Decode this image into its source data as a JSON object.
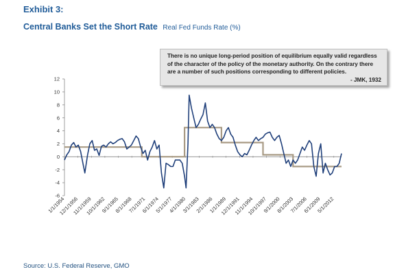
{
  "exhibit_label": "Exhibit 3:",
  "title": "Central Banks Set the Short Rate",
  "subtitle": "Real Fed Funds Rate (%)",
  "quote": {
    "text": "There is no unique long-period position of equilibrium equally valid regardless of the character of the policy of the monetary authority. On the contrary there are a number of such positions corresponding to different policies.",
    "attribution": "- JMK, 1932"
  },
  "source": "Source: U.S. Federal Reserve, GMO",
  "colors": {
    "title": "#1f5b98",
    "rate_line": "#1f3f7a",
    "regime_line": "#a89a84"
  },
  "chart_data": {
    "type": "line",
    "title": "Central Banks Set the Short Rate",
    "ylim": [
      -6,
      12
    ],
    "yticks": [
      -6,
      -4,
      -2,
      0,
      2,
      4,
      6,
      8,
      10,
      12
    ],
    "x_domain": [
      "1/1/1954",
      "1/1/2014"
    ],
    "x_tick_labels": [
      "1/1/1954",
      "12/1/1956",
      "11/1/1959",
      "10/1/1962",
      "9/1/1965",
      "8/1/1968",
      "7/1/1971",
      "6/1/1974",
      "5/1/1977",
      "4/1/1980",
      "3/1/1983",
      "2/1/1986",
      "1/1/1989",
      "12/1/1991",
      "11/1/1994",
      "10/1/1997",
      "9/1/2000",
      "8/1/2003",
      "7/1/2006",
      "6/1/2009",
      "5/1/2012"
    ],
    "grid": false,
    "legend": "none",
    "series": [
      {
        "kind": "rate",
        "points": [
          [
            "1/1954",
            -0.5
          ],
          [
            "7/1954",
            0.3
          ],
          [
            "1/1955",
            0.8
          ],
          [
            "7/1955",
            1.8
          ],
          [
            "1/1956",
            2.2
          ],
          [
            "7/1956",
            1.5
          ],
          [
            "1/1957",
            1.8
          ],
          [
            "7/1957",
            0.8
          ],
          [
            "1/1958",
            -1.0
          ],
          [
            "6/1958",
            -2.5
          ],
          [
            "1/1959",
            0.3
          ],
          [
            "7/1959",
            2.0
          ],
          [
            "1/1960",
            2.5
          ],
          [
            "7/1960",
            1.0
          ],
          [
            "1/1961",
            1.2
          ],
          [
            "7/1961",
            0.2
          ],
          [
            "1/1962",
            1.6
          ],
          [
            "7/1962",
            1.8
          ],
          [
            "1/1963",
            1.5
          ],
          [
            "7/1963",
            2.0
          ],
          [
            "1/1964",
            2.3
          ],
          [
            "7/1964",
            2.0
          ],
          [
            "1/1965",
            2.2
          ],
          [
            "7/1965",
            2.5
          ],
          [
            "1/1966",
            2.7
          ],
          [
            "7/1966",
            2.8
          ],
          [
            "1/1967",
            2.3
          ],
          [
            "7/1967",
            1.2
          ],
          [
            "1/1968",
            1.5
          ],
          [
            "7/1968",
            1.8
          ],
          [
            "1/1969",
            2.5
          ],
          [
            "7/1969",
            3.2
          ],
          [
            "1/1970",
            2.8
          ],
          [
            "7/1970",
            1.5
          ],
          [
            "1/1971",
            0.5
          ],
          [
            "7/1971",
            1.0
          ],
          [
            "1/1972",
            -0.5
          ],
          [
            "7/1972",
            0.8
          ],
          [
            "1/1973",
            1.5
          ],
          [
            "7/1973",
            2.5
          ],
          [
            "1/1974",
            1.2
          ],
          [
            "7/1974",
            1.8
          ],
          [
            "1/1975",
            -2.5
          ],
          [
            "7/1975",
            -4.8
          ],
          [
            "1/1976",
            -1.0
          ],
          [
            "7/1976",
            -1.2
          ],
          [
            "1/1977",
            -1.5
          ],
          [
            "7/1977",
            -1.5
          ],
          [
            "1/1978",
            -0.5
          ],
          [
            "7/1978",
            -0.5
          ],
          [
            "1/1979",
            -0.5
          ],
          [
            "7/1979",
            -1.0
          ],
          [
            "1/1980",
            -3.0
          ],
          [
            "5/1980",
            -4.8
          ],
          [
            "10/1980",
            2.0
          ],
          [
            "1/1981",
            9.5
          ],
          [
            "7/1981",
            7.5
          ],
          [
            "1/1982",
            6.0
          ],
          [
            "7/1982",
            4.5
          ],
          [
            "1/1983",
            5.0
          ],
          [
            "7/1983",
            5.8
          ],
          [
            "1/1984",
            6.5
          ],
          [
            "7/1984",
            8.3
          ],
          [
            "1/1985",
            5.5
          ],
          [
            "7/1985",
            4.5
          ],
          [
            "1/1986",
            5.0
          ],
          [
            "7/1986",
            4.5
          ],
          [
            "1/1987",
            3.5
          ],
          [
            "7/1987",
            2.8
          ],
          [
            "1/1988",
            2.5
          ],
          [
            "7/1988",
            3.0
          ],
          [
            "1/1989",
            4.0
          ],
          [
            "7/1989",
            4.5
          ],
          [
            "1/1990",
            3.5
          ],
          [
            "7/1990",
            3.0
          ],
          [
            "1/1991",
            1.8
          ],
          [
            "7/1991",
            0.8
          ],
          [
            "1/1992",
            0.3
          ],
          [
            "7/1992",
            0.0
          ],
          [
            "1/1993",
            0.5
          ],
          [
            "7/1993",
            0.3
          ],
          [
            "1/1994",
            1.0
          ],
          [
            "7/1994",
            1.8
          ],
          [
            "1/1995",
            2.5
          ],
          [
            "7/1995",
            3.0
          ],
          [
            "1/1996",
            2.5
          ],
          [
            "7/1996",
            2.8
          ],
          [
            "1/1997",
            3.0
          ],
          [
            "7/1997",
            3.5
          ],
          [
            "1/1998",
            3.7
          ],
          [
            "7/1998",
            3.8
          ],
          [
            "1/1999",
            3.0
          ],
          [
            "7/1999",
            2.5
          ],
          [
            "1/2000",
            3.0
          ],
          [
            "7/2000",
            3.3
          ],
          [
            "1/2001",
            2.0
          ],
          [
            "7/2001",
            0.5
          ],
          [
            "1/2002",
            -1.0
          ],
          [
            "7/2002",
            -0.5
          ],
          [
            "1/2003",
            -1.5
          ],
          [
            "7/2003",
            -0.5
          ],
          [
            "1/2004",
            -1.0
          ],
          [
            "7/2004",
            -0.5
          ],
          [
            "1/2005",
            0.5
          ],
          [
            "7/2005",
            1.5
          ],
          [
            "1/2006",
            1.0
          ],
          [
            "7/2006",
            1.8
          ],
          [
            "1/2007",
            2.5
          ],
          [
            "7/2007",
            2.0
          ],
          [
            "1/2008",
            -1.5
          ],
          [
            "7/2008",
            -3.0
          ],
          [
            "1/2009",
            0.5
          ],
          [
            "7/2009",
            2.0
          ],
          [
            "1/2010",
            -2.5
          ],
          [
            "7/2010",
            -1.0
          ],
          [
            "1/2011",
            -2.0
          ],
          [
            "7/2011",
            -2.8
          ],
          [
            "1/2012",
            -2.5
          ],
          [
            "7/2012",
            -1.5
          ],
          [
            "1/2013",
            -1.5
          ],
          [
            "7/2013",
            -1.0
          ],
          [
            "1/2014",
            0.5
          ]
        ]
      },
      {
        "kind": "regime_average",
        "segments": [
          {
            "start": "1/1954",
            "end": "10/1970",
            "value": 1.5
          },
          {
            "start": "10/1970",
            "end": "1/1980",
            "value": 0.0
          },
          {
            "start": "1/1980",
            "end": "1/1988",
            "value": 4.5
          },
          {
            "start": "1/1988",
            "end": "1/1997",
            "value": 2.2
          },
          {
            "start": "1/1997",
            "end": "7/2003",
            "value": 0.3
          },
          {
            "start": "7/2003",
            "end": "1/2014",
            "value": -1.5
          }
        ]
      }
    ]
  }
}
